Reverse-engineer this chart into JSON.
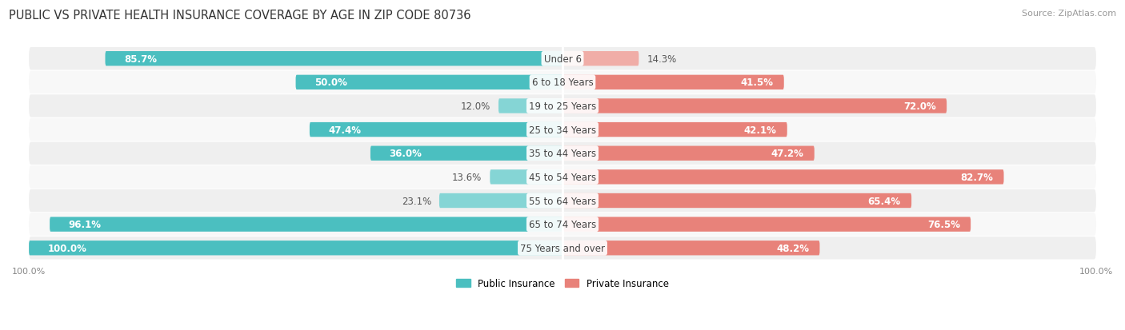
{
  "title": "PUBLIC VS PRIVATE HEALTH INSURANCE COVERAGE BY AGE IN ZIP CODE 80736",
  "source": "Source: ZipAtlas.com",
  "categories": [
    "Under 6",
    "6 to 18 Years",
    "19 to 25 Years",
    "25 to 34 Years",
    "35 to 44 Years",
    "45 to 54 Years",
    "55 to 64 Years",
    "65 to 74 Years",
    "75 Years and over"
  ],
  "public_values": [
    85.7,
    50.0,
    12.0,
    47.4,
    36.0,
    13.6,
    23.1,
    96.1,
    100.0
  ],
  "private_values": [
    14.3,
    41.5,
    72.0,
    42.1,
    47.2,
    82.7,
    65.4,
    76.5,
    48.2
  ],
  "public_color": "#4BBFC0",
  "private_color": "#E8827A",
  "public_color_light": "#85D5D5",
  "private_color_light": "#F0ADA7",
  "row_bg_odd": "#EFEFEF",
  "row_bg_even": "#F8F8F8",
  "bar_height": 0.62,
  "max_value": 100.0,
  "title_fontsize": 10.5,
  "label_fontsize": 8.5,
  "cat_fontsize": 8.5,
  "tick_fontsize": 8,
  "source_fontsize": 8,
  "white_text_threshold_pub": 25,
  "white_text_threshold_priv": 30
}
